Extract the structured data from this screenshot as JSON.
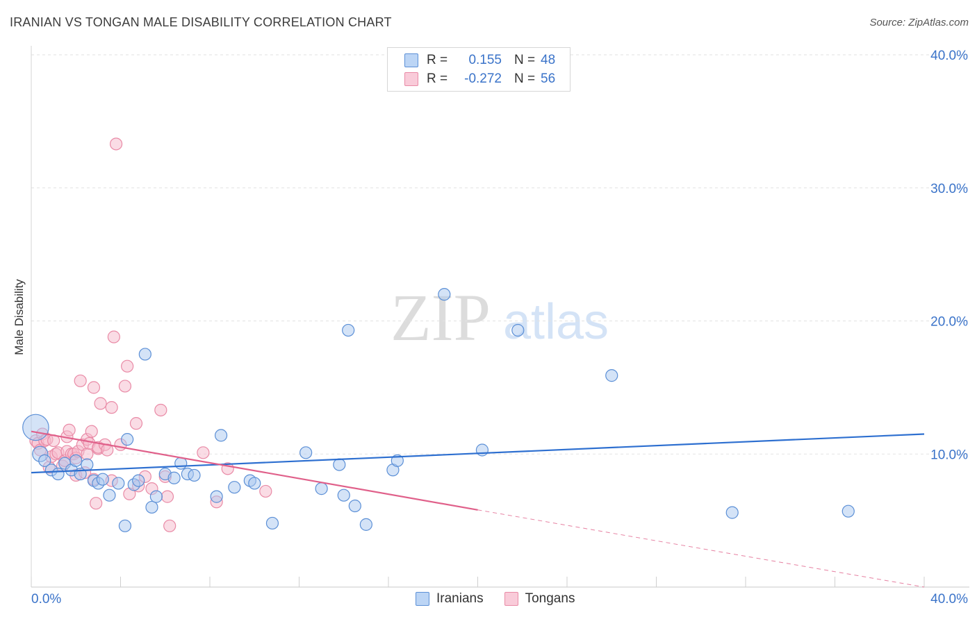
{
  "header": {
    "title": "IRANIAN VS TONGAN MALE DISABILITY CORRELATION CHART",
    "source": "Source: ZipAtlas.com"
  },
  "watermark": {
    "zip": "ZIP",
    "atlas": "atlas"
  },
  "colors": {
    "iranians_fill": "#aac8f0",
    "iranians_stroke": "#5b8fd6",
    "iranians_line": "#2d6fd0",
    "tongans_fill": "#f6b9cb",
    "tongans_stroke": "#e98aa6",
    "tongans_line": "#e0608a",
    "axis_label": "#3a73c9",
    "grid": "#e2e2e2"
  },
  "legend_top": {
    "rows": [
      {
        "r_label": "R =",
        "r_value": "0.155",
        "n_label": "N =",
        "n_value": "48"
      },
      {
        "r_label": "R =",
        "r_value": "-0.272",
        "n_label": "N =",
        "n_value": "56"
      }
    ]
  },
  "legend_bottom": {
    "iranians": "Iranians",
    "tongans": "Tongans"
  },
  "chart_data": {
    "type": "scatter",
    "title": "IRANIAN VS TONGAN MALE DISABILITY CORRELATION CHART",
    "xlabel": "",
    "ylabel": "Male Disability",
    "xlim": [
      0,
      40
    ],
    "ylim": [
      0,
      40
    ],
    "x_tick_labels": [
      "0.0%",
      "40.0%"
    ],
    "y_ticks": [
      10,
      20,
      30,
      40
    ],
    "y_tick_labels": [
      "10.0%",
      "20.0%",
      "30.0%",
      "40.0%"
    ],
    "grid": true,
    "legend": "bottom",
    "series": [
      {
        "name": "Iranians",
        "r": 0.155,
        "n": 48,
        "trend": {
          "x": [
            0,
            40
          ],
          "y": [
            8.6,
            11.5
          ]
        },
        "points": [
          {
            "x": 0.2,
            "y": 12.0,
            "s": 2.2
          },
          {
            "x": 0.4,
            "y": 10.0,
            "s": 1.3
          },
          {
            "x": 0.6,
            "y": 9.5
          },
          {
            "x": 0.9,
            "y": 8.8
          },
          {
            "x": 1.2,
            "y": 8.5
          },
          {
            "x": 1.5,
            "y": 9.3
          },
          {
            "x": 1.8,
            "y": 8.8
          },
          {
            "x": 2.0,
            "y": 9.5
          },
          {
            "x": 2.2,
            "y": 8.5
          },
          {
            "x": 2.5,
            "y": 9.2
          },
          {
            "x": 2.8,
            "y": 8.0
          },
          {
            "x": 3.0,
            "y": 7.8
          },
          {
            "x": 3.2,
            "y": 8.1
          },
          {
            "x": 3.5,
            "y": 6.9
          },
          {
            "x": 3.9,
            "y": 7.8
          },
          {
            "x": 4.2,
            "y": 4.6
          },
          {
            "x": 4.3,
            "y": 11.1
          },
          {
            "x": 4.6,
            "y": 7.7
          },
          {
            "x": 4.8,
            "y": 8.0
          },
          {
            "x": 5.1,
            "y": 17.5
          },
          {
            "x": 5.4,
            "y": 6.0
          },
          {
            "x": 5.6,
            "y": 6.8
          },
          {
            "x": 6.0,
            "y": 8.5
          },
          {
            "x": 6.4,
            "y": 8.2
          },
          {
            "x": 6.7,
            "y": 9.3
          },
          {
            "x": 7.0,
            "y": 8.5
          },
          {
            "x": 7.3,
            "y": 8.4
          },
          {
            "x": 8.3,
            "y": 6.8
          },
          {
            "x": 8.5,
            "y": 11.4
          },
          {
            "x": 9.1,
            "y": 7.5
          },
          {
            "x": 9.8,
            "y": 8.0
          },
          {
            "x": 10.0,
            "y": 7.8
          },
          {
            "x": 10.8,
            "y": 4.8
          },
          {
            "x": 12.3,
            "y": 10.1
          },
          {
            "x": 13.0,
            "y": 7.4
          },
          {
            "x": 13.8,
            "y": 9.2
          },
          {
            "x": 14.2,
            "y": 19.3
          },
          {
            "x": 14.0,
            "y": 6.9
          },
          {
            "x": 14.5,
            "y": 6.1
          },
          {
            "x": 15.0,
            "y": 4.7
          },
          {
            "x": 16.2,
            "y": 8.8
          },
          {
            "x": 16.4,
            "y": 9.5
          },
          {
            "x": 18.5,
            "y": 22.0
          },
          {
            "x": 20.2,
            "y": 10.3
          },
          {
            "x": 21.8,
            "y": 19.3
          },
          {
            "x": 26.0,
            "y": 15.9
          },
          {
            "x": 31.4,
            "y": 5.6
          },
          {
            "x": 36.6,
            "y": 5.7
          }
        ]
      },
      {
        "name": "Tongans",
        "r": -0.272,
        "n": 56,
        "trend": {
          "x": [
            0,
            20
          ],
          "y": [
            11.7,
            5.8
          ]
        },
        "trend_dashed": {
          "x": [
            20,
            40
          ],
          "y": [
            5.8,
            0.0
          ]
        },
        "points": [
          {
            "x": 0.2,
            "y": 11.0
          },
          {
            "x": 0.3,
            "y": 10.8
          },
          {
            "x": 0.4,
            "y": 10.3
          },
          {
            "x": 0.5,
            "y": 11.5
          },
          {
            "x": 0.6,
            "y": 11.0
          },
          {
            "x": 0.7,
            "y": 11.1
          },
          {
            "x": 0.8,
            "y": 9.0
          },
          {
            "x": 0.9,
            "y": 9.8
          },
          {
            "x": 1.0,
            "y": 11.0
          },
          {
            "x": 1.1,
            "y": 10.0
          },
          {
            "x": 1.2,
            "y": 10.1
          },
          {
            "x": 1.4,
            "y": 9.1
          },
          {
            "x": 1.5,
            "y": 9.5
          },
          {
            "x": 1.6,
            "y": 10.2
          },
          {
            "x": 1.6,
            "y": 11.3
          },
          {
            "x": 1.7,
            "y": 11.8
          },
          {
            "x": 1.8,
            "y": 10.0
          },
          {
            "x": 1.9,
            "y": 10.0
          },
          {
            "x": 2.0,
            "y": 9.7
          },
          {
            "x": 2.0,
            "y": 8.4
          },
          {
            "x": 2.1,
            "y": 10.2
          },
          {
            "x": 2.2,
            "y": 15.5
          },
          {
            "x": 2.3,
            "y": 10.7
          },
          {
            "x": 2.4,
            "y": 8.6
          },
          {
            "x": 2.5,
            "y": 10.0
          },
          {
            "x": 2.5,
            "y": 11.1
          },
          {
            "x": 2.6,
            "y": 10.8
          },
          {
            "x": 2.7,
            "y": 11.7
          },
          {
            "x": 2.8,
            "y": 8.1
          },
          {
            "x": 2.8,
            "y": 15.0
          },
          {
            "x": 2.9,
            "y": 6.3
          },
          {
            "x": 3.0,
            "y": 10.4
          },
          {
            "x": 3.0,
            "y": 10.5
          },
          {
            "x": 3.1,
            "y": 13.8
          },
          {
            "x": 3.3,
            "y": 10.7
          },
          {
            "x": 3.4,
            "y": 10.3
          },
          {
            "x": 3.6,
            "y": 13.5
          },
          {
            "x": 3.6,
            "y": 8.0
          },
          {
            "x": 3.7,
            "y": 18.8
          },
          {
            "x": 3.8,
            "y": 33.3
          },
          {
            "x": 4.0,
            "y": 10.7
          },
          {
            "x": 4.2,
            "y": 15.1
          },
          {
            "x": 4.3,
            "y": 16.6
          },
          {
            "x": 4.4,
            "y": 7.0
          },
          {
            "x": 4.7,
            "y": 12.3
          },
          {
            "x": 4.8,
            "y": 7.6
          },
          {
            "x": 5.1,
            "y": 8.3
          },
          {
            "x": 5.4,
            "y": 7.4
          },
          {
            "x": 5.8,
            "y": 13.3
          },
          {
            "x": 6.0,
            "y": 8.3
          },
          {
            "x": 6.1,
            "y": 6.8
          },
          {
            "x": 6.2,
            "y": 4.6
          },
          {
            "x": 7.7,
            "y": 10.1
          },
          {
            "x": 8.3,
            "y": 6.4
          },
          {
            "x": 8.8,
            "y": 8.9
          },
          {
            "x": 10.5,
            "y": 7.2
          }
        ]
      }
    ]
  }
}
